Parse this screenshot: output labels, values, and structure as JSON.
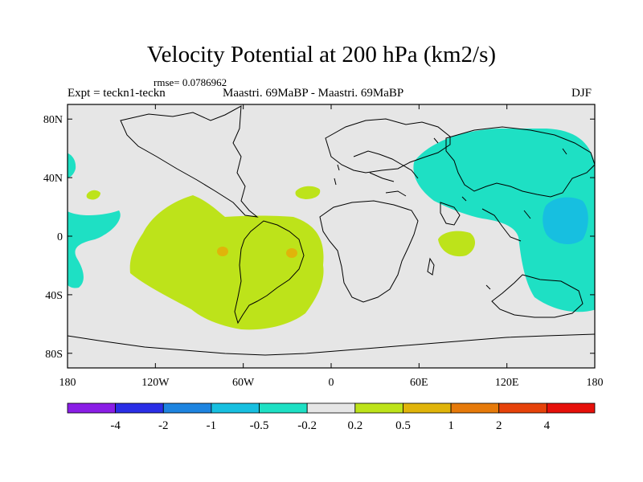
{
  "title": "Velocity Potential at 200 hPa (km2/s)",
  "rmse_label": "rmse= 0.0786962",
  "expt_label": "Expt = teckn1-teckn",
  "cases_label": "Maastri.  69MaBP - Maastri.  69MaBP",
  "season_label": "DJF",
  "map": {
    "projection": "cylindrical equidistant",
    "lon_range": [
      -180,
      180
    ],
    "lat_range": [
      -90,
      90
    ],
    "lon_ticks": [
      {
        "value": -180,
        "label": "180"
      },
      {
        "value": -120,
        "label": "120W"
      },
      {
        "value": -60,
        "label": "60W"
      },
      {
        "value": 0,
        "label": "0"
      },
      {
        "value": 60,
        "label": "60E"
      },
      {
        "value": 120,
        "label": "120E"
      },
      {
        "value": 180,
        "label": "180"
      }
    ],
    "lat_ticks": [
      {
        "value": 80,
        "label": "80N"
      },
      {
        "value": 40,
        "label": "40N"
      },
      {
        "value": 0,
        "label": "0"
      },
      {
        "value": -40,
        "label": "40S"
      },
      {
        "value": -80,
        "label": "80S"
      }
    ]
  },
  "colorbar": {
    "boundary_labels": [
      "-4",
      "-2",
      "-1",
      "-0.5",
      "-0.2",
      "0.2",
      "0.5",
      "1",
      "2",
      "4"
    ],
    "colors": [
      "#8a1ee6",
      "#2a2ee6",
      "#1e84e0",
      "#17bfe0",
      "#1ee0c4",
      "#e6e6e6",
      "#bde31a",
      "#e0b40a",
      "#e67a0a",
      "#e6420a",
      "#e6100a"
    ]
  },
  "colors": {
    "neutral": "#e6e6e6",
    "pos_weak": "#bde31a",
    "pos_mod": "#e0b40a",
    "neg_weak": "#1ee0c4",
    "neg_mod": "#17bfe0"
  }
}
